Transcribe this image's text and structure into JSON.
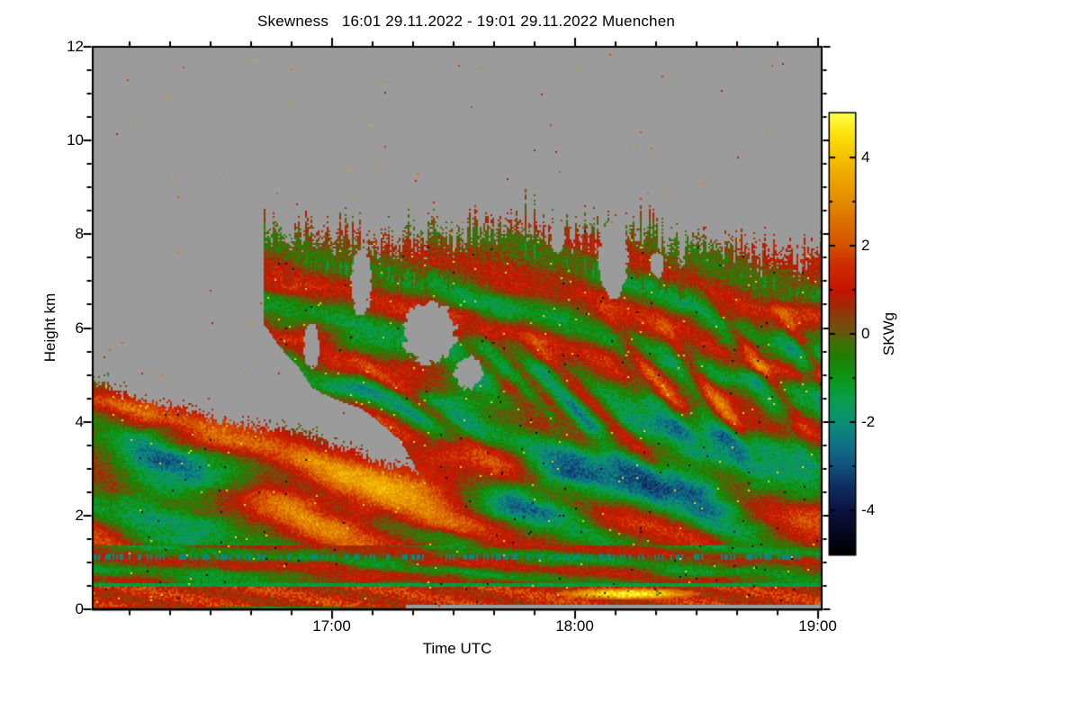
{
  "title": "Skewness   16:01 29.11.2022 - 19:01 29.11.2022 Muenchen",
  "axes": {
    "x": {
      "label": "Time UTC",
      "start": "16:01",
      "end": "19:01",
      "tick_labels": [
        "17:00",
        "18:00",
        "19:00"
      ],
      "tick_minutes": [
        59,
        119,
        179
      ],
      "range_minutes": [
        0,
        180
      ],
      "minor_every_minutes": 10
    },
    "y": {
      "label": "Height km",
      "tick_labels": [
        "0",
        "2",
        "4",
        "6",
        "8",
        "10",
        "12"
      ],
      "tick_values": [
        0,
        2,
        4,
        6,
        8,
        10,
        12
      ],
      "range_km": [
        0,
        12
      ],
      "minor_every_km": 0.5
    }
  },
  "colorbar": {
    "label": "SKWg",
    "tick_labels": [
      "4",
      "2",
      "0",
      "-2",
      "-4"
    ],
    "tick_values": [
      4,
      2,
      0,
      -2,
      -4
    ],
    "minor_values": [
      5,
      3,
      1,
      -1,
      -3,
      -5
    ],
    "range": [
      -5,
      5
    ]
  },
  "colors": {
    "background": "#ffffff",
    "frame": "#000000",
    "text": "#000000",
    "nodata_gray": "#9b9b9b"
  },
  "chart_data": {
    "type": "heatmap",
    "title": "Skewness   16:01 29.11.2022 - 19:01 29.11.2022 Muenchen",
    "site": "Muenchen",
    "quantity": "Skewness (SKWg)",
    "xlabel": "Time UTC",
    "ylabel": "Height km",
    "x_range": [
      "16:01",
      "19:01"
    ],
    "x_ticks": [
      "17:00",
      "18:00",
      "19:00"
    ],
    "y_range_km": [
      0,
      12
    ],
    "y_ticks_km": [
      0,
      2,
      4,
      6,
      8,
      10,
      12
    ],
    "value_range": [
      -5,
      5
    ],
    "colorbar_label": "SKWg",
    "colorbar_ticks": [
      4,
      2,
      0,
      -2,
      -4
    ],
    "nodata_color": "#9b9b9b",
    "colormap_stops": [
      [
        -5,
        "#000000"
      ],
      [
        -4.5,
        "#05071f"
      ],
      [
        -4,
        "#0a1340"
      ],
      [
        -3.5,
        "#0e2a5e"
      ],
      [
        -3,
        "#11517c"
      ],
      [
        -2.5,
        "#0d7186"
      ],
      [
        -2,
        "#0b8f74"
      ],
      [
        -1.5,
        "#0b9d50"
      ],
      [
        -1,
        "#0a9715"
      ],
      [
        -0.5,
        "#227d04"
      ],
      [
        -0.15,
        "#456d06"
      ],
      [
        0,
        "#655a0d"
      ],
      [
        0.35,
        "#84420a"
      ],
      [
        0.7,
        "#a52506"
      ],
      [
        1,
        "#c51300"
      ],
      [
        1.6,
        "#cc2e00"
      ],
      [
        2,
        "#d45200"
      ],
      [
        2.6,
        "#dd7200"
      ],
      [
        3,
        "#e38b00"
      ],
      [
        3.6,
        "#eda800"
      ],
      [
        4,
        "#f4c100"
      ],
      [
        4.5,
        "#fbdf0a"
      ],
      [
        5,
        "#ffff45"
      ]
    ],
    "features": [
      "Gray (#9b9b9b) marks no-data: everywhere above ~8.3 km, and above ~4.8 km before ~16:45",
      "Aerosol layer from the surface to ~4.8 km at 16:01, its top descending to ~3.2 km by ~17:15, filled with alternating positive (red, ~+1) and negative (green, ~-1.5) skewness streaks sloping down to the right",
      "Cloud deck appears after ~16:45 with spiky tops between ~7.3 and ~8.2 km lasting until 19:01; interior is near-zero (olive) speckle with diagonal red fall streaks and green bands; several gray holes inside the deck near 17:25-17:40 at 5-6.5 km and ~18:10 at 7-8 km",
      "Boundary layer below ~1.3 km: positive-skewness red band from ~0.1-0.45 km, thin green negative line at ~0.5 km, cyan/teal dashed negative line near ~1.1 km",
      "Bright yellow patch (skewness ~+4 to +5) near the surface (~0.2-0.5 km) between ~17:55 and ~18:40",
      "Thin gray no-data strip at the lowest gates (below ~0.1 km) from ~17:20 to 19:01",
      "Sparse single-pixel speckles (yellow, orange, black) scattered over both data and gray regions"
    ]
  }
}
